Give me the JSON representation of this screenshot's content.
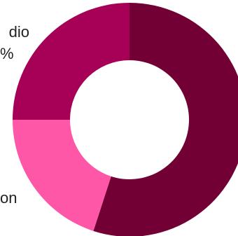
{
  "chart_data": {
    "type": "pie",
    "style": "donut",
    "slices": [
      {
        "label": "",
        "value": 0.55,
        "color": "#730034"
      },
      {
        "label": "",
        "value": 0.2,
        "color": "#ff57a8"
      },
      {
        "label": "",
        "value": 0.25,
        "color": "#a60057"
      }
    ],
    "visible_label_fragments": [
      "dio",
      "%",
      "on"
    ]
  }
}
